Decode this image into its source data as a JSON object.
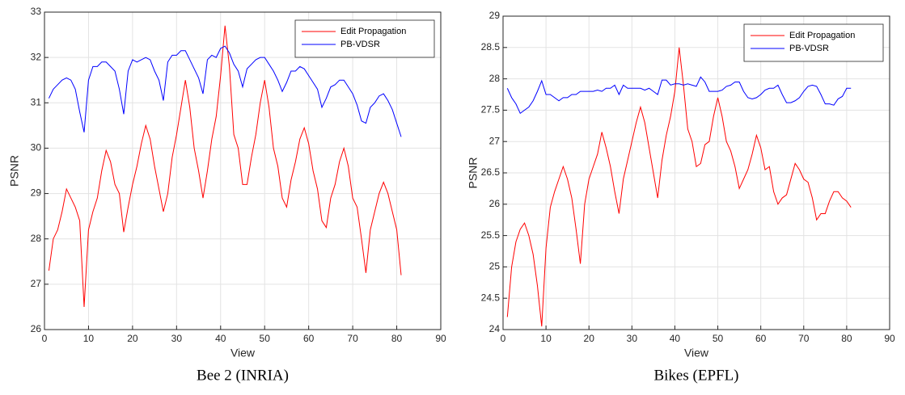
{
  "chart_data": [
    {
      "type": "line",
      "caption": "Bee 2 (INRIA)",
      "xlabel": "View",
      "ylabel": "PSNR",
      "x": [
        1,
        2,
        3,
        4,
        5,
        6,
        7,
        8,
        9,
        10,
        11,
        12,
        13,
        14,
        15,
        16,
        17,
        18,
        19,
        20,
        21,
        22,
        23,
        24,
        25,
        26,
        27,
        28,
        29,
        30,
        31,
        32,
        33,
        34,
        35,
        36,
        37,
        38,
        39,
        40,
        41,
        42,
        43,
        44,
        45,
        46,
        47,
        48,
        49,
        50,
        51,
        52,
        53,
        54,
        55,
        56,
        57,
        58,
        59,
        60,
        61,
        62,
        63,
        64,
        65,
        66,
        67,
        68,
        69,
        70,
        71,
        72,
        73,
        74,
        75,
        76,
        77,
        78,
        79,
        80,
        81
      ],
      "series": [
        {
          "name": "Edit Propagation",
          "color": "#ff0000",
          "values": [
            27.3,
            28.0,
            28.2,
            28.6,
            29.1,
            28.9,
            28.7,
            28.4,
            26.5,
            28.2,
            28.6,
            28.9,
            29.5,
            29.95,
            29.7,
            29.2,
            29.0,
            28.15,
            28.7,
            29.2,
            29.6,
            30.1,
            30.5,
            30.2,
            29.6,
            29.1,
            28.6,
            29.0,
            29.8,
            30.3,
            30.9,
            31.5,
            30.9,
            30.0,
            29.5,
            28.9,
            29.5,
            30.2,
            30.7,
            31.6,
            32.7,
            31.8,
            30.3,
            30.0,
            29.2,
            29.2,
            29.8,
            30.3,
            31.0,
            31.5,
            30.9,
            30.0,
            29.6,
            28.9,
            28.7,
            29.3,
            29.7,
            30.2,
            30.45,
            30.1,
            29.5,
            29.1,
            28.4,
            28.25,
            28.9,
            29.2,
            29.7,
            30.0,
            29.6,
            28.9,
            28.7,
            28.0,
            27.25,
            28.2,
            28.6,
            29.0,
            29.25,
            29.0,
            28.6,
            28.2,
            27.2
          ]
        },
        {
          "name": "PB-VDSR",
          "color": "#0000ff",
          "values": [
            31.1,
            31.3,
            31.4,
            31.5,
            31.55,
            31.5,
            31.3,
            30.8,
            30.35,
            31.5,
            31.8,
            31.8,
            31.9,
            31.9,
            31.8,
            31.7,
            31.3,
            30.75,
            31.7,
            31.95,
            31.9,
            31.95,
            32.0,
            31.95,
            31.7,
            31.5,
            31.05,
            31.9,
            32.05,
            32.05,
            32.15,
            32.15,
            31.95,
            31.75,
            31.55,
            31.2,
            31.95,
            32.05,
            32.0,
            32.2,
            32.25,
            32.1,
            31.85,
            31.7,
            31.35,
            31.75,
            31.85,
            31.95,
            32.0,
            32.0,
            31.85,
            31.7,
            31.5,
            31.25,
            31.45,
            31.7,
            31.7,
            31.8,
            31.75,
            31.6,
            31.45,
            31.3,
            30.9,
            31.1,
            31.35,
            31.4,
            31.5,
            31.5,
            31.35,
            31.2,
            30.95,
            30.6,
            30.55,
            30.9,
            31.0,
            31.15,
            31.2,
            31.05,
            30.85,
            30.55,
            30.25
          ]
        }
      ],
      "xlim": [
        0,
        90
      ],
      "xticks": [
        0,
        10,
        20,
        30,
        40,
        50,
        60,
        70,
        80,
        90
      ],
      "ylim": [
        26,
        33
      ],
      "yticks": [
        26,
        27,
        28,
        29,
        30,
        31,
        32,
        33
      ],
      "grid": true,
      "legend": "upper right"
    },
    {
      "type": "line",
      "caption": "Bikes (EPFL)",
      "xlabel": "View",
      "ylabel": "PSNR",
      "x": [
        1,
        2,
        3,
        4,
        5,
        6,
        7,
        8,
        9,
        10,
        11,
        12,
        13,
        14,
        15,
        16,
        17,
        18,
        19,
        20,
        21,
        22,
        23,
        24,
        25,
        26,
        27,
        28,
        29,
        30,
        31,
        32,
        33,
        34,
        35,
        36,
        37,
        38,
        39,
        40,
        41,
        42,
        43,
        44,
        45,
        46,
        47,
        48,
        49,
        50,
        51,
        52,
        53,
        54,
        55,
        56,
        57,
        58,
        59,
        60,
        61,
        62,
        63,
        64,
        65,
        66,
        67,
        68,
        69,
        70,
        71,
        72,
        73,
        74,
        75,
        76,
        77,
        78,
        79,
        80,
        81
      ],
      "series": [
        {
          "name": "Edit Propagation",
          "color": "#ff0000",
          "values": [
            24.2,
            25.0,
            25.4,
            25.6,
            25.7,
            25.5,
            25.2,
            24.7,
            24.05,
            25.3,
            25.95,
            26.2,
            26.4,
            26.6,
            26.4,
            26.1,
            25.6,
            25.05,
            26.0,
            26.4,
            26.6,
            26.8,
            27.15,
            26.9,
            26.6,
            26.2,
            25.85,
            26.4,
            26.7,
            27.0,
            27.3,
            27.55,
            27.3,
            26.9,
            26.5,
            26.1,
            26.7,
            27.1,
            27.4,
            27.8,
            28.5,
            27.9,
            27.2,
            27.0,
            26.6,
            26.65,
            26.95,
            27.0,
            27.4,
            27.7,
            27.4,
            27.0,
            26.85,
            26.6,
            26.25,
            26.4,
            26.55,
            26.8,
            27.1,
            26.9,
            26.55,
            26.6,
            26.2,
            26.0,
            26.1,
            26.15,
            26.4,
            26.65,
            26.55,
            26.4,
            26.35,
            26.1,
            25.75,
            25.85,
            25.85,
            26.05,
            26.2,
            26.2,
            26.1,
            26.05,
            25.95
          ]
        },
        {
          "name": "PB-VDSR",
          "color": "#0000ff",
          "values": [
            27.85,
            27.7,
            27.6,
            27.45,
            27.5,
            27.55,
            27.65,
            27.8,
            27.97,
            27.75,
            27.75,
            27.7,
            27.65,
            27.7,
            27.7,
            27.75,
            27.75,
            27.8,
            27.8,
            27.8,
            27.8,
            27.82,
            27.8,
            27.85,
            27.85,
            27.9,
            27.75,
            27.9,
            27.85,
            27.85,
            27.85,
            27.85,
            27.82,
            27.85,
            27.8,
            27.75,
            27.98,
            27.98,
            27.9,
            27.92,
            27.92,
            27.9,
            27.92,
            27.9,
            27.88,
            28.03,
            27.95,
            27.8,
            27.8,
            27.8,
            27.82,
            27.88,
            27.9,
            27.95,
            27.95,
            27.8,
            27.7,
            27.68,
            27.7,
            27.75,
            27.82,
            27.85,
            27.85,
            27.9,
            27.75,
            27.62,
            27.62,
            27.65,
            27.7,
            27.8,
            27.88,
            27.9,
            27.88,
            27.75,
            27.6,
            27.6,
            27.58,
            27.68,
            27.72,
            27.85,
            27.85
          ]
        }
      ],
      "xlim": [
        0,
        90
      ],
      "xticks": [
        0,
        10,
        20,
        30,
        40,
        50,
        60,
        70,
        80,
        90
      ],
      "ylim": [
        24,
        29
      ],
      "yticks": [
        24,
        24.5,
        25,
        25.5,
        26,
        26.5,
        27,
        27.5,
        28,
        28.5,
        29
      ],
      "grid": true,
      "legend": "upper right"
    }
  ]
}
